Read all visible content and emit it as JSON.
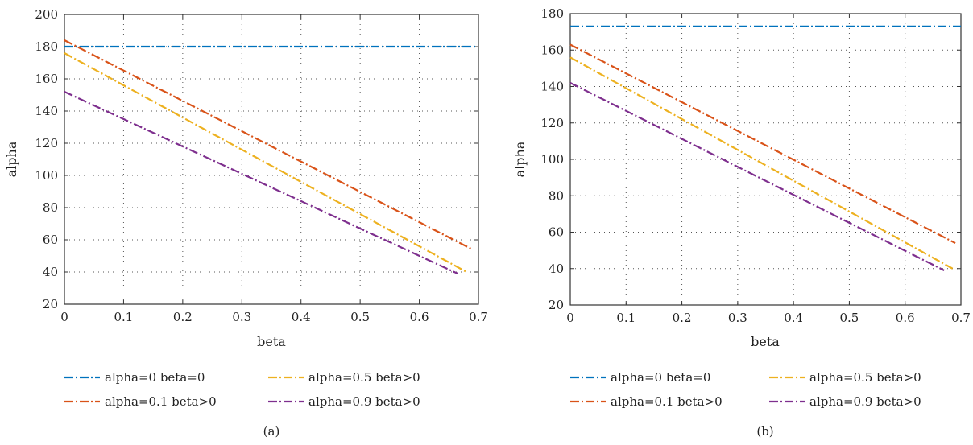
{
  "chart_data": [
    {
      "type": "line",
      "panel_label": "(a)",
      "xlabel": "beta",
      "ylabel": "alpha",
      "xlim": [
        0,
        0.7
      ],
      "ylim": [
        20,
        200
      ],
      "xticks": [
        "0",
        "0.1",
        "0.2",
        "0.3",
        "0.4",
        "0.5",
        "0.6",
        "0.7"
      ],
      "yticks": [
        "20",
        "40",
        "60",
        "80",
        "100",
        "120",
        "140",
        "160",
        "180",
        "200"
      ],
      "grid": true,
      "legend_position": "bottom",
      "series": [
        {
          "name": "alpha=0 beta=0",
          "color": "#0072BD",
          "x": [
            0,
            0.7
          ],
          "y": [
            180,
            180
          ]
        },
        {
          "name": "alpha=0.1 beta>0",
          "color": "#D95319",
          "x": [
            0,
            0.69
          ],
          "y": [
            184,
            54
          ]
        },
        {
          "name": "alpha=0.5 beta>0",
          "color": "#EDB120",
          "x": [
            0,
            0.68
          ],
          "y": [
            176,
            40
          ]
        },
        {
          "name": "alpha=0.9 beta>0",
          "color": "#7E2F8E",
          "x": [
            0,
            0.665
          ],
          "y": [
            152,
            39
          ]
        }
      ]
    },
    {
      "type": "line",
      "panel_label": "(b)",
      "xlabel": "beta",
      "ylabel": "alpha",
      "xlim": [
        0,
        0.7
      ],
      "ylim": [
        20,
        180
      ],
      "xticks": [
        "0",
        "0.1",
        "0.2",
        "0.3",
        "0.4",
        "0.5",
        "0.6",
        "0.7"
      ],
      "yticks": [
        "20",
        "40",
        "60",
        "80",
        "100",
        "120",
        "140",
        "160",
        "180"
      ],
      "grid": true,
      "legend_position": "bottom",
      "series": [
        {
          "name": "alpha=0 beta=0",
          "color": "#0072BD",
          "x": [
            0,
            0.7
          ],
          "y": [
            173,
            173
          ]
        },
        {
          "name": "alpha=0.1 beta>0",
          "color": "#D95319",
          "x": [
            0,
            0.69
          ],
          "y": [
            163,
            54
          ]
        },
        {
          "name": "alpha=0.5 beta>0",
          "color": "#EDB120",
          "x": [
            0,
            0.685
          ],
          "y": [
            156,
            40
          ]
        },
        {
          "name": "alpha=0.9 beta>0",
          "color": "#7E2F8E",
          "x": [
            0,
            0.67
          ],
          "y": [
            142,
            39
          ]
        }
      ]
    }
  ]
}
